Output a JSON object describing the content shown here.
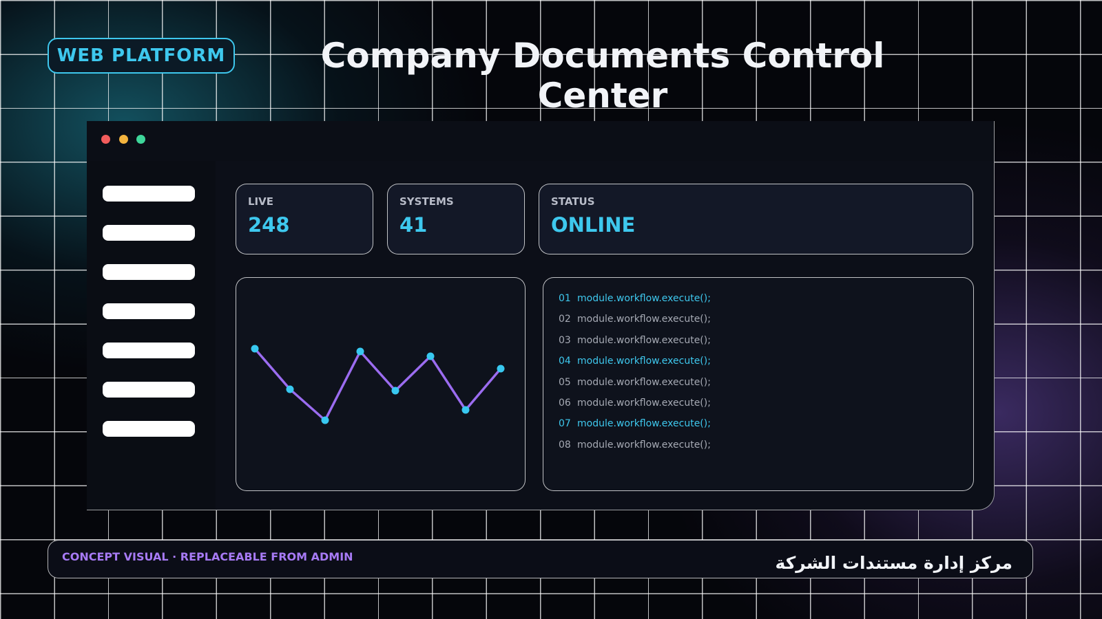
{
  "header": {
    "badge": "WEB PLATFORM",
    "title": "Company Documents Control Center"
  },
  "stats": [
    {
      "label": "LIVE",
      "value": 248
    },
    {
      "label": "SYSTEMS",
      "value": 41
    },
    {
      "label": "STATUS",
      "value": "ONLINE"
    }
  ],
  "sparkline": {
    "type": "line",
    "values": [
      207,
      148,
      103,
      203,
      146,
      196,
      118,
      178
    ],
    "line_color": "#9b6cf0",
    "point_color": "#38c8f0"
  },
  "code": [
    {
      "number": "01",
      "text": "module.workflow.execute();",
      "highlight": true
    },
    {
      "number": "02",
      "text": "module.workflow.execute();",
      "highlight": false
    },
    {
      "number": "03",
      "text": "module.workflow.execute();",
      "highlight": false
    },
    {
      "number": "04",
      "text": "module.workflow.execute();",
      "highlight": true
    },
    {
      "number": "05",
      "text": "module.workflow.execute();",
      "highlight": false
    },
    {
      "number": "06",
      "text": "module.workflow.execute();",
      "highlight": false
    },
    {
      "number": "07",
      "text": "module.workflow.execute();",
      "highlight": true
    },
    {
      "number": "08",
      "text": "module.workflow.execute();",
      "highlight": false
    }
  ],
  "footer": {
    "left": "CONCEPT VISUAL · REPLACEABLE FROM ADMIN",
    "right": "مركز إدارة مستندات الشركة"
  }
}
